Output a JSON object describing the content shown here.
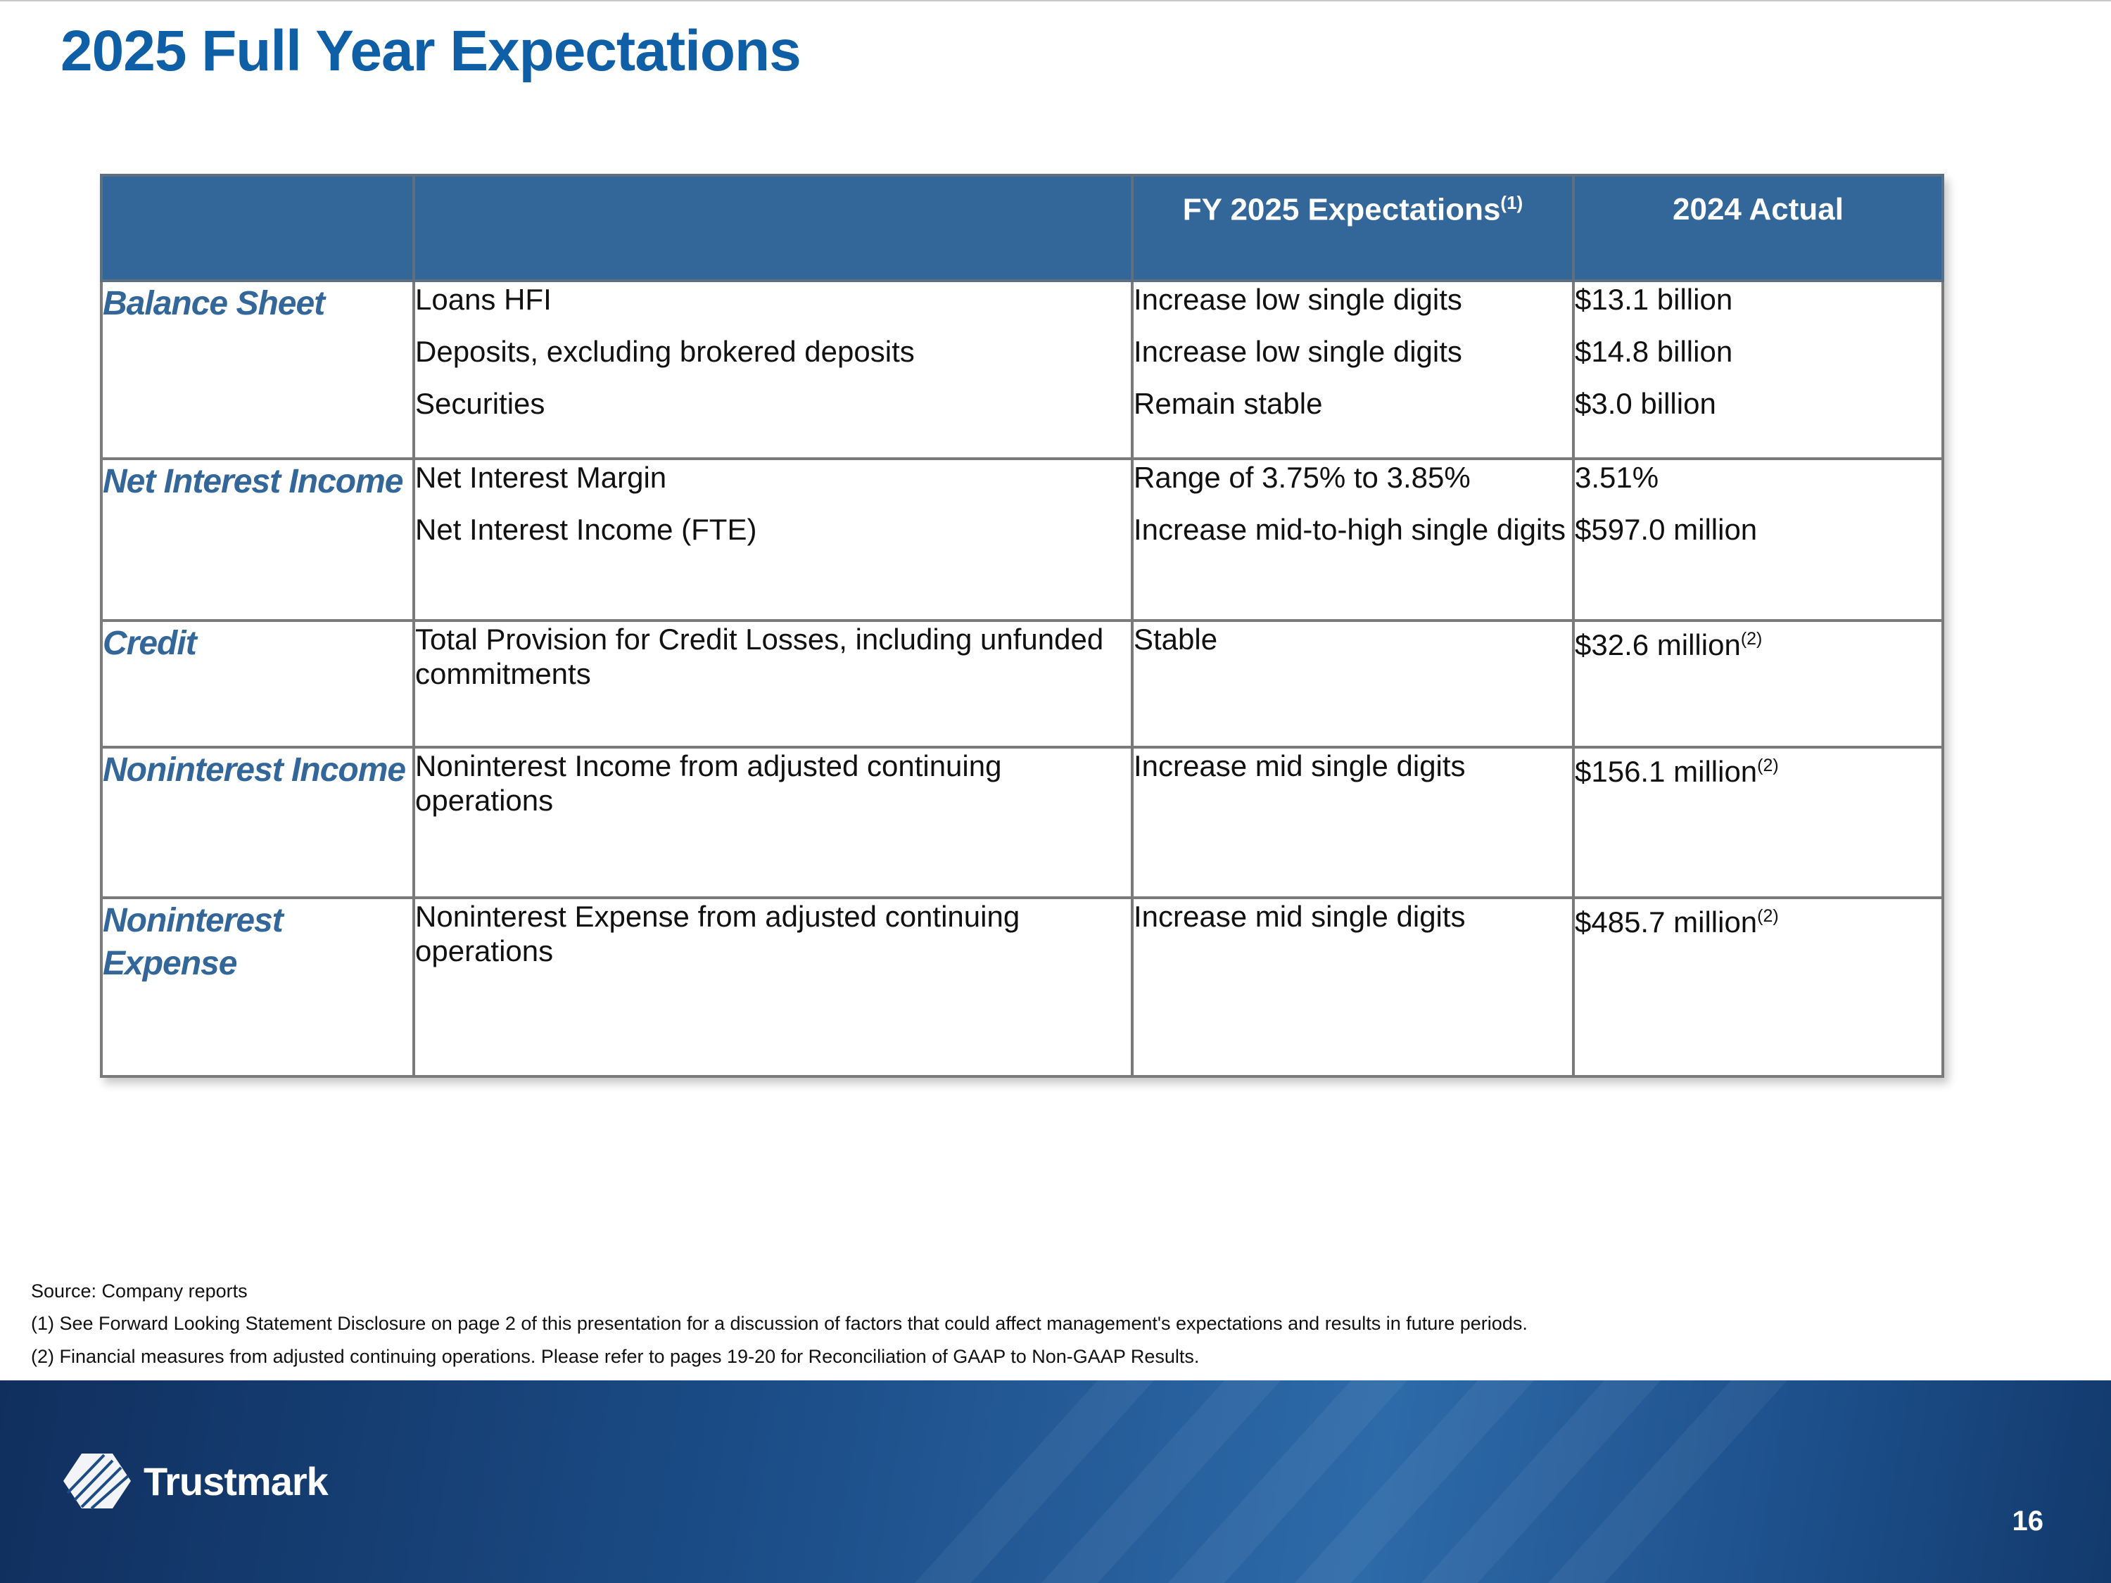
{
  "title": "2025 Full Year Expectations",
  "table": {
    "headers": [
      "",
      "",
      "FY 2025 Expectations",
      "2024 Actual"
    ],
    "header_note": "(1)",
    "rows": [
      {
        "category": "Balance Sheet",
        "metrics": [
          "Loans HFI",
          "Deposits, excluding brokered deposits",
          "Securities"
        ],
        "expectations": [
          "Increase low single digits",
          "Increase low single digits",
          "Remain stable"
        ],
        "actuals": [
          {
            "value": "$13.1 billion",
            "note": ""
          },
          {
            "value": "$14.8 billion",
            "note": ""
          },
          {
            "value": "$3.0 billion",
            "note": ""
          }
        ]
      },
      {
        "category": "Net Interest Income",
        "metrics": [
          "Net Interest Margin",
          "Net Interest Income (FTE)"
        ],
        "expectations": [
          "Range of 3.75% to 3.85%",
          "Increase mid-to-high single digits"
        ],
        "actuals": [
          {
            "value": "3.51%",
            "note": ""
          },
          {
            "value": "$597.0 million",
            "note": ""
          }
        ]
      },
      {
        "category": "Credit",
        "metrics": [
          "Total Provision for Credit Losses, including unfunded commitments"
        ],
        "expectations": [
          "Stable"
        ],
        "actuals": [
          {
            "value": "$32.6 million",
            "note": "(2)"
          }
        ]
      },
      {
        "category": "Noninterest Income",
        "metrics": [
          "Noninterest Income from adjusted continuing operations"
        ],
        "expectations": [
          "Increase mid single digits"
        ],
        "actuals": [
          {
            "value": "$156.1 million",
            "note": "(2)"
          }
        ]
      },
      {
        "category": "Noninterest Expense",
        "metrics": [
          "Noninterest Expense from adjusted continuing operations"
        ],
        "expectations": [
          "Increase mid single digits"
        ],
        "actuals": [
          {
            "value": "$485.7 million",
            "note": "(2)"
          }
        ]
      }
    ]
  },
  "footnotes": {
    "source": "Source: Company reports",
    "note1": "(1) See Forward Looking Statement Disclosure on page 2 of this presentation for a discussion of factors that could affect management's expectations and results in future periods.",
    "note2": "(2) Financial measures from adjusted continuing operations. Please refer to pages 19-20 for Reconciliation of GAAP to Non-GAAP Results."
  },
  "footer": {
    "brand": "Trustmark",
    "page_number": "16",
    "logo_icon": "trustmark-logo-icon"
  }
}
